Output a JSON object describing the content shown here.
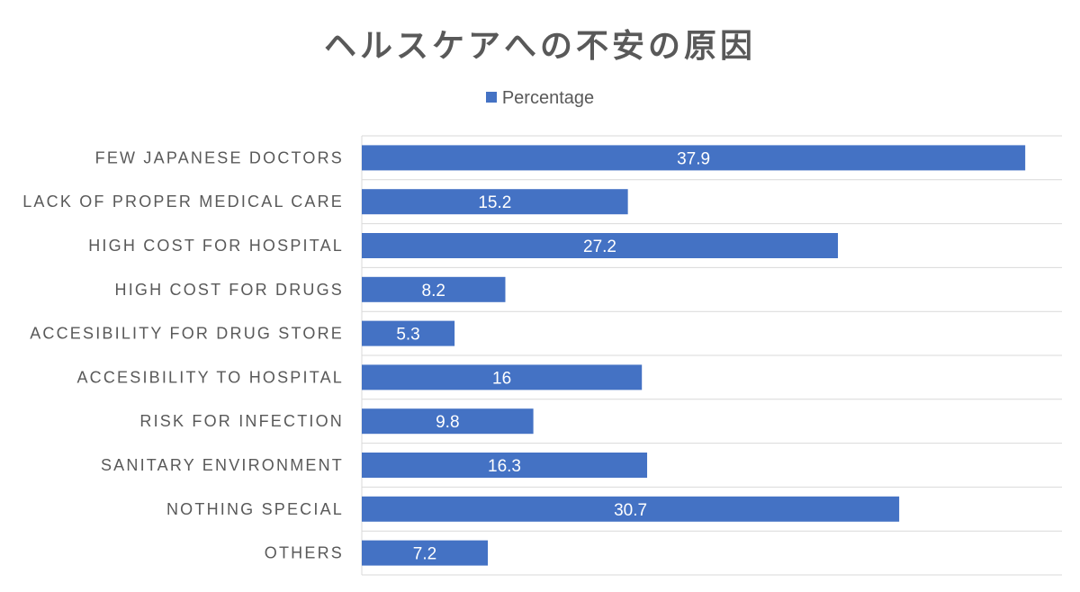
{
  "chart_data": {
    "type": "bar",
    "orientation": "horizontal",
    "title": "ヘルスケアへの不安の原因",
    "legend": {
      "entries": [
        "Percentage"
      ],
      "placement": "top"
    },
    "categories": [
      "FEW JAPANESE DOCTORS",
      "LACK OF PROPER MEDICAL CARE",
      "HIGH COST FOR HOSPITAL",
      "HIGH COST FOR DRUGS",
      "ACCESIBILITY FOR DRUG STORE",
      "ACCESIBILITY TO HOSPITAL",
      "RISK FOR INFECTION",
      "SANITARY ENVIRONMENT",
      "NOTHING SPECIAL",
      "OTHERS"
    ],
    "series": [
      {
        "name": "Percentage",
        "values": [
          37.9,
          15.2,
          27.2,
          8.2,
          5.3,
          16,
          9.8,
          16.3,
          30.7,
          7.2
        ],
        "color": "#4472C4"
      }
    ],
    "xlim": [
      0,
      40
    ],
    "xlabel": "",
    "ylabel": "",
    "grid": "horizontal category separators"
  }
}
